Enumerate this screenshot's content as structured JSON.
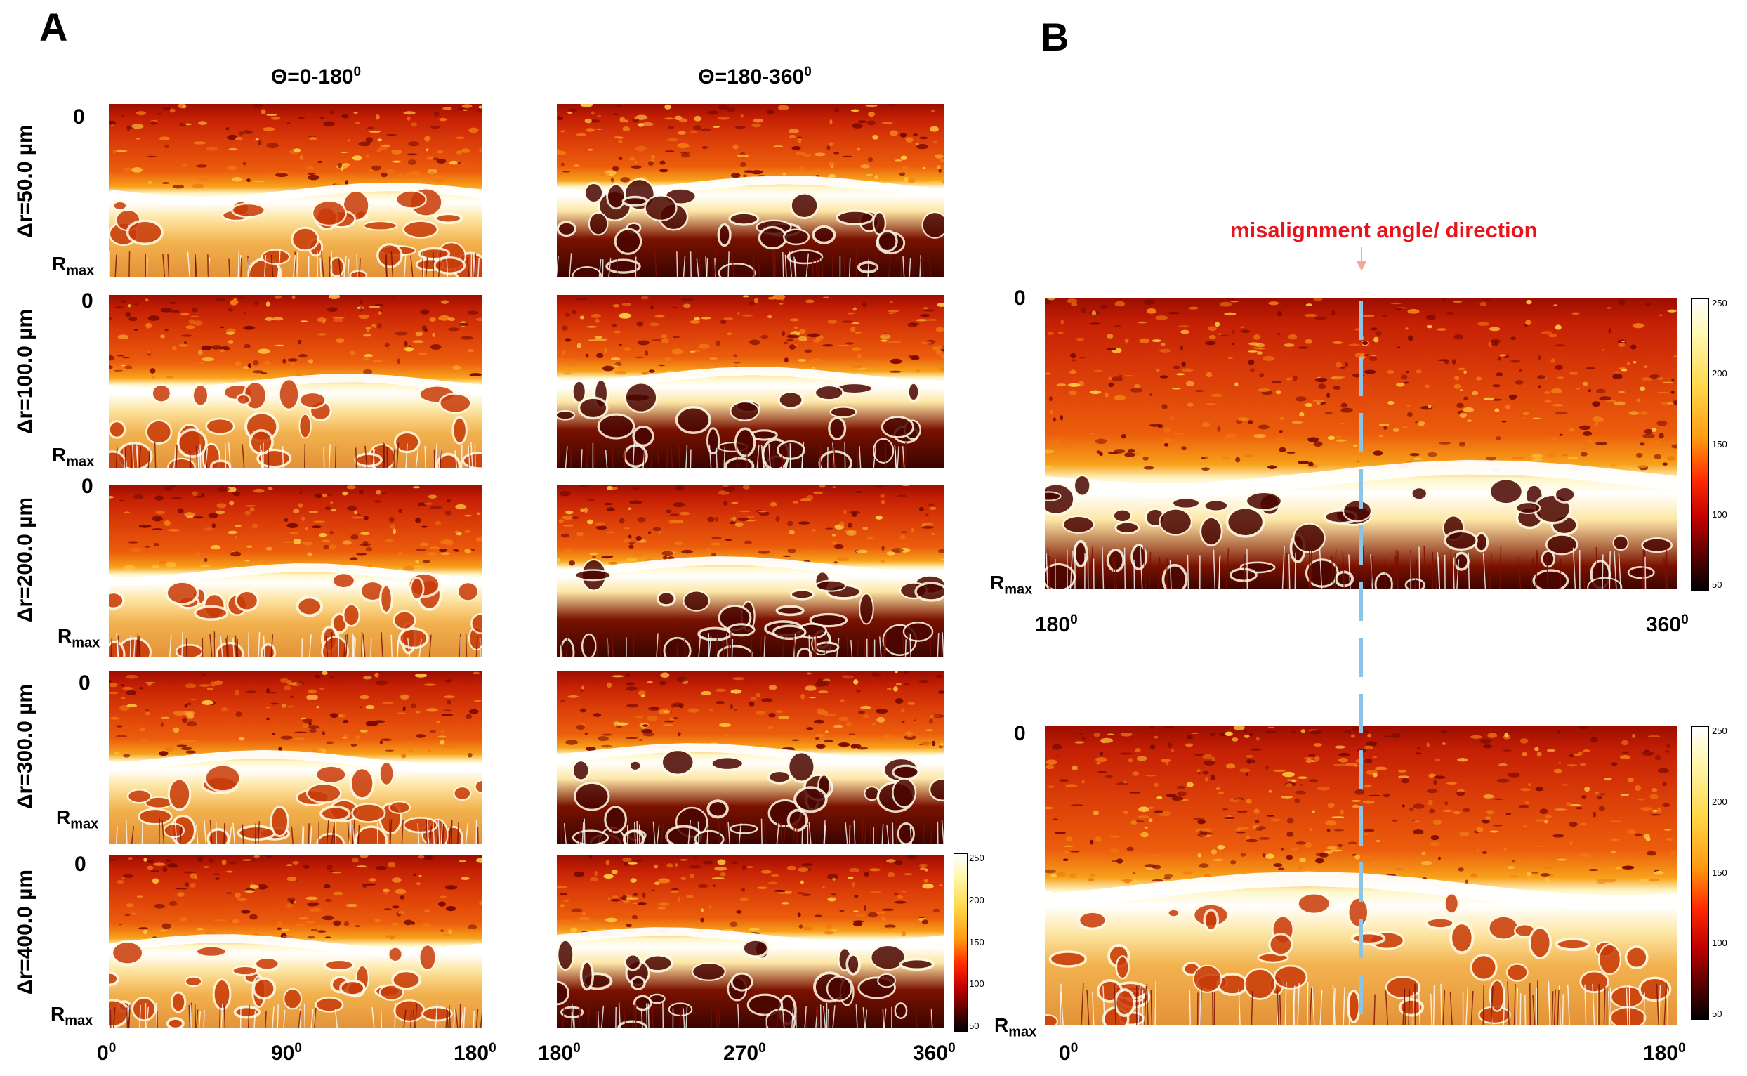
{
  "panels": {
    "a": {
      "letter": "A",
      "col_titles": {
        "left": {
          "main": "Θ=0-180",
          "sup": "0"
        },
        "right": {
          "main": "Θ=180-360",
          "sup": "0"
        }
      },
      "row_labels": [
        "Δr=50.0 µm",
        "Δr=100.0 µm",
        "Δr=200.0 µm",
        "Δr=300.0 µm",
        "Δr=400.0 µm"
      ],
      "zero_label": "0",
      "rmax_label": {
        "main": "R",
        "sub": "max"
      },
      "x_ticks_left": [
        {
          "main": "0",
          "sup": "0"
        },
        {
          "main": "90",
          "sup": "0"
        },
        {
          "main": "180",
          "sup": "0"
        }
      ],
      "x_ticks_right": [
        {
          "main": "180",
          "sup": "0"
        },
        {
          "main": "270",
          "sup": "0"
        },
        {
          "main": "360",
          "sup": "0"
        }
      ],
      "colorbar_ticks": [
        "250",
        "200",
        "150",
        "100",
        "50"
      ]
    },
    "b": {
      "letter": "B",
      "annotation": "misalignment angle/ direction",
      "top_plot": {
        "zero_label": "0",
        "rmax_label": {
          "main": "R",
          "sub": "max"
        },
        "x_ticks": [
          {
            "main": "180",
            "sup": "0"
          },
          {
            "main": "360",
            "sup": "0"
          }
        ],
        "colorbar_ticks": [
          "250",
          "200",
          "150",
          "100",
          "50"
        ]
      },
      "bottom_plot": {
        "zero_label": "0",
        "rmax_label": {
          "main": "R",
          "sub": "max"
        },
        "x_ticks": [
          {
            "main": "0",
            "sup": "0"
          },
          {
            "main": "180",
            "sup": "0"
          }
        ],
        "colorbar_ticks": [
          "250",
          "200",
          "150",
          "100",
          "50"
        ]
      }
    }
  },
  "colors": {
    "annotation_text": "#e8141c",
    "annotation_arrow": "#f4a79a",
    "dashed_line": "#8cc4e8"
  }
}
